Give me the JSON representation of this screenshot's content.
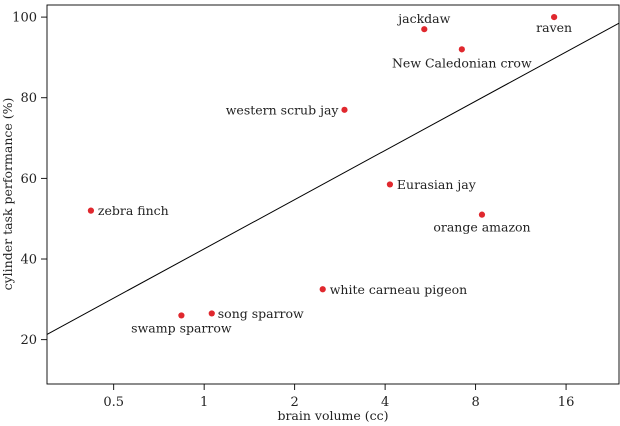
{
  "chart_data": {
    "type": "scatter",
    "title": "",
    "xlabel": "brain volume (cc)",
    "ylabel": "cylinder task performance (%)",
    "x_scale": "log2",
    "xlim": [
      0.3,
      24
    ],
    "ylim": [
      9,
      103
    ],
    "x_ticks": [
      0.5,
      1,
      2,
      4,
      8,
      16
    ],
    "x_tick_labels": [
      "0.5",
      "1",
      "2",
      "4",
      "8",
      "16"
    ],
    "y_ticks": [
      20,
      40,
      60,
      80,
      100
    ],
    "y_tick_labels": [
      "20",
      "40",
      "60",
      "80",
      "100"
    ],
    "grid": false,
    "point_color": "#e0282e",
    "points": [
      {
        "label": "zebra finch",
        "x": 0.42,
        "y": 52
      },
      {
        "label": "swamp sparrow",
        "x": 0.84,
        "y": 26
      },
      {
        "label": "song sparrow",
        "x": 1.06,
        "y": 26.5
      },
      {
        "label": "white carneau pigeon",
        "x": 2.48,
        "y": 32.5
      },
      {
        "label": "western scrub jay",
        "x": 2.93,
        "y": 77
      },
      {
        "label": "Eurasian jay",
        "x": 4.15,
        "y": 58.5
      },
      {
        "label": "jackdaw",
        "x": 5.4,
        "y": 97
      },
      {
        "label": "New Caledonian crow",
        "x": 7.2,
        "y": 92
      },
      {
        "label": "orange amazon",
        "x": 8.4,
        "y": 51
      },
      {
        "label": "raven",
        "x": 14.6,
        "y": 100
      }
    ],
    "trend_line": {
      "x": [
        0.3,
        24
      ],
      "y": [
        21.3,
        98.5
      ]
    }
  }
}
